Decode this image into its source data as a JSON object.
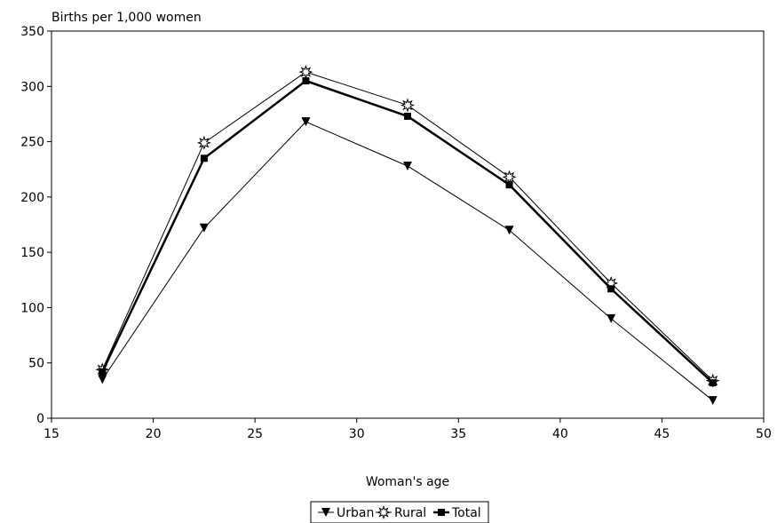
{
  "chart_data": {
    "type": "line",
    "title": "",
    "ylabel": "Births per 1,000 women",
    "xlabel": "Woman's age",
    "xlim": [
      15,
      50
    ],
    "ylim": [
      0,
      350
    ],
    "xticks": [
      15,
      20,
      25,
      30,
      35,
      40,
      45,
      50
    ],
    "yticks": [
      0,
      50,
      100,
      150,
      200,
      250,
      300,
      350
    ],
    "grid": false,
    "legend_position": "bottom-center",
    "x": [
      17.5,
      22.5,
      27.5,
      32.5,
      37.5,
      42.5,
      47.5
    ],
    "series": [
      {
        "name": "Urban",
        "marker": "triangle-down",
        "color": "#000000",
        "values": [
          35,
          172,
          268,
          228,
          170,
          90,
          16
        ]
      },
      {
        "name": "Rural",
        "marker": "star",
        "color": "#000000",
        "values": [
          44,
          249,
          313,
          283,
          218,
          122,
          34
        ]
      },
      {
        "name": "Total",
        "marker": "square",
        "color": "#000000",
        "values": [
          42,
          235,
          305,
          273,
          211,
          117,
          32
        ]
      }
    ]
  }
}
